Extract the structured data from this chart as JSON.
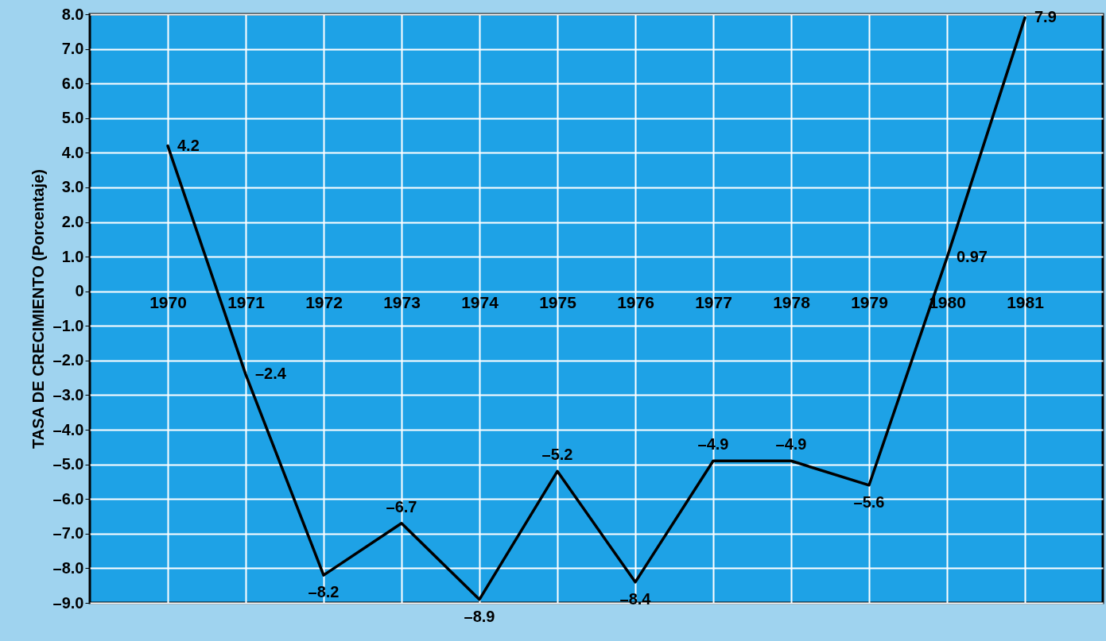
{
  "chart_data": {
    "type": "line",
    "ylabel": "TASA DE CRECIMIENTO (Porcentaje)",
    "categories": [
      "1970",
      "1971",
      "1972",
      "1973",
      "1974",
      "1975",
      "1976",
      "1977",
      "1978",
      "1979",
      "1980",
      "1981"
    ],
    "series": [
      {
        "color": "#000000",
        "values": [
          4.2,
          -2.4,
          -8.2,
          -6.7,
          -8.9,
          -5.2,
          -8.4,
          -4.9,
          -4.9,
          -5.6,
          0.97,
          7.9
        ],
        "value_labels": [
          "4.2",
          "–2.4",
          "–8.2",
          "–6.7",
          "–8.9",
          "–5.2",
          "–8.4",
          "–4.9",
          "–4.9",
          "–5.6",
          "0.97",
          "7.9"
        ]
      }
    ],
    "ylim": [
      -9,
      8
    ],
    "yticks": [
      {
        "value": 8,
        "label": "8.0"
      },
      {
        "value": 7,
        "label": "7.0"
      },
      {
        "value": 6,
        "label": "6.0"
      },
      {
        "value": 5,
        "label": "5.0"
      },
      {
        "value": 4,
        "label": "4.0"
      },
      {
        "value": 3,
        "label": "3.0"
      },
      {
        "value": 2,
        "label": "2.0"
      },
      {
        "value": 1,
        "label": "1.0"
      },
      0,
      {
        "value": -1,
        "label": "–1.0"
      },
      {
        "value": -2,
        "label": "–2.0"
      },
      {
        "value": -3,
        "label": "–3.0"
      },
      {
        "value": -4,
        "label": "–4.0"
      },
      {
        "value": -5,
        "label": "–5.0"
      },
      {
        "value": -6,
        "label": "–6.0"
      },
      {
        "value": -7,
        "label": "–7.0"
      },
      {
        "value": -8,
        "label": "–8.0"
      },
      {
        "value": -9,
        "label": "–9.0"
      }
    ],
    "grid": true
  }
}
